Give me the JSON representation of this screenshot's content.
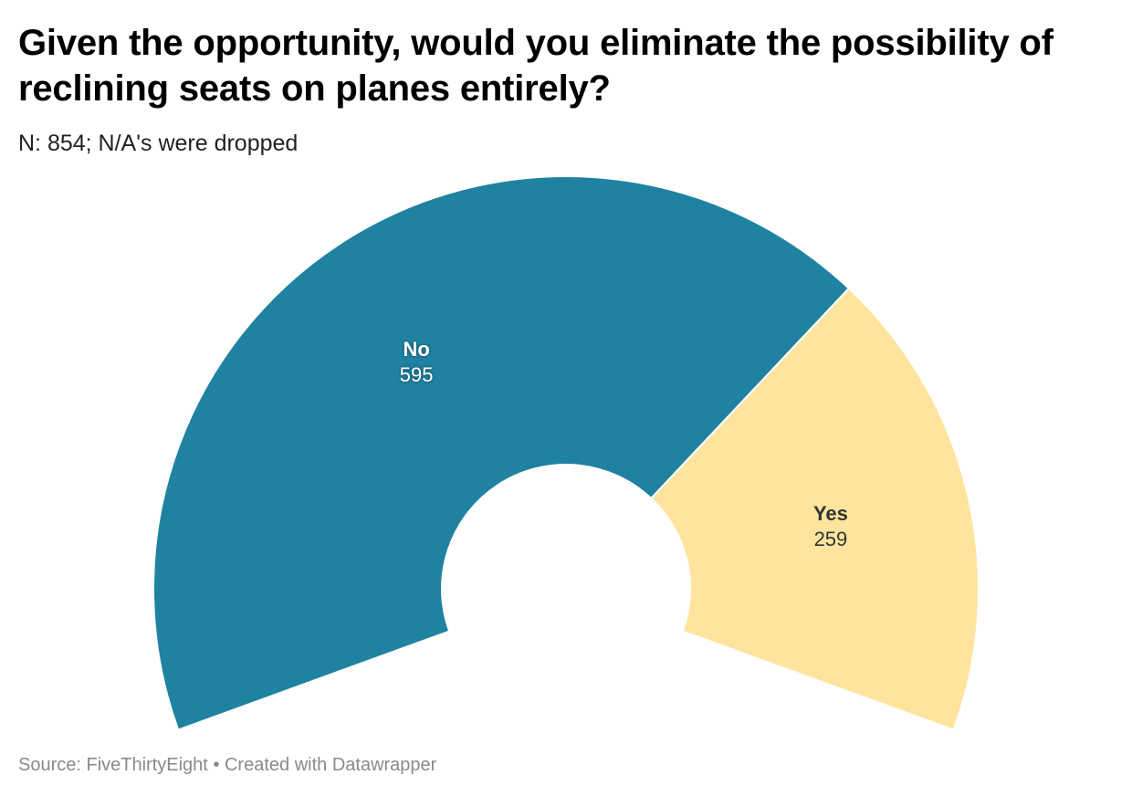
{
  "header": {
    "title": "Given the opportunity, would you eliminate the possibility of reclining seats on planes entirely?",
    "subtitle": "N: 854; N/A's were dropped"
  },
  "footer": {
    "source": "Source: FiveThirtyEight",
    "separator": " • ",
    "credit": "Created with Datawrapper"
  },
  "chart_data": {
    "type": "pie",
    "variant": "semi-donut",
    "title": "Given the opportunity, would you eliminate the possibility of reclining seats on planes entirely?",
    "subtitle": "N: 854; N/A's were dropped",
    "categories": [
      "No",
      "Yes"
    ],
    "values": [
      595,
      259
    ],
    "value_labels": [
      "595",
      "259"
    ],
    "colors": [
      "#1f82a1",
      "#fee49d"
    ],
    "label_colors": [
      "#ffffff",
      "#333333"
    ],
    "total": 854
  }
}
